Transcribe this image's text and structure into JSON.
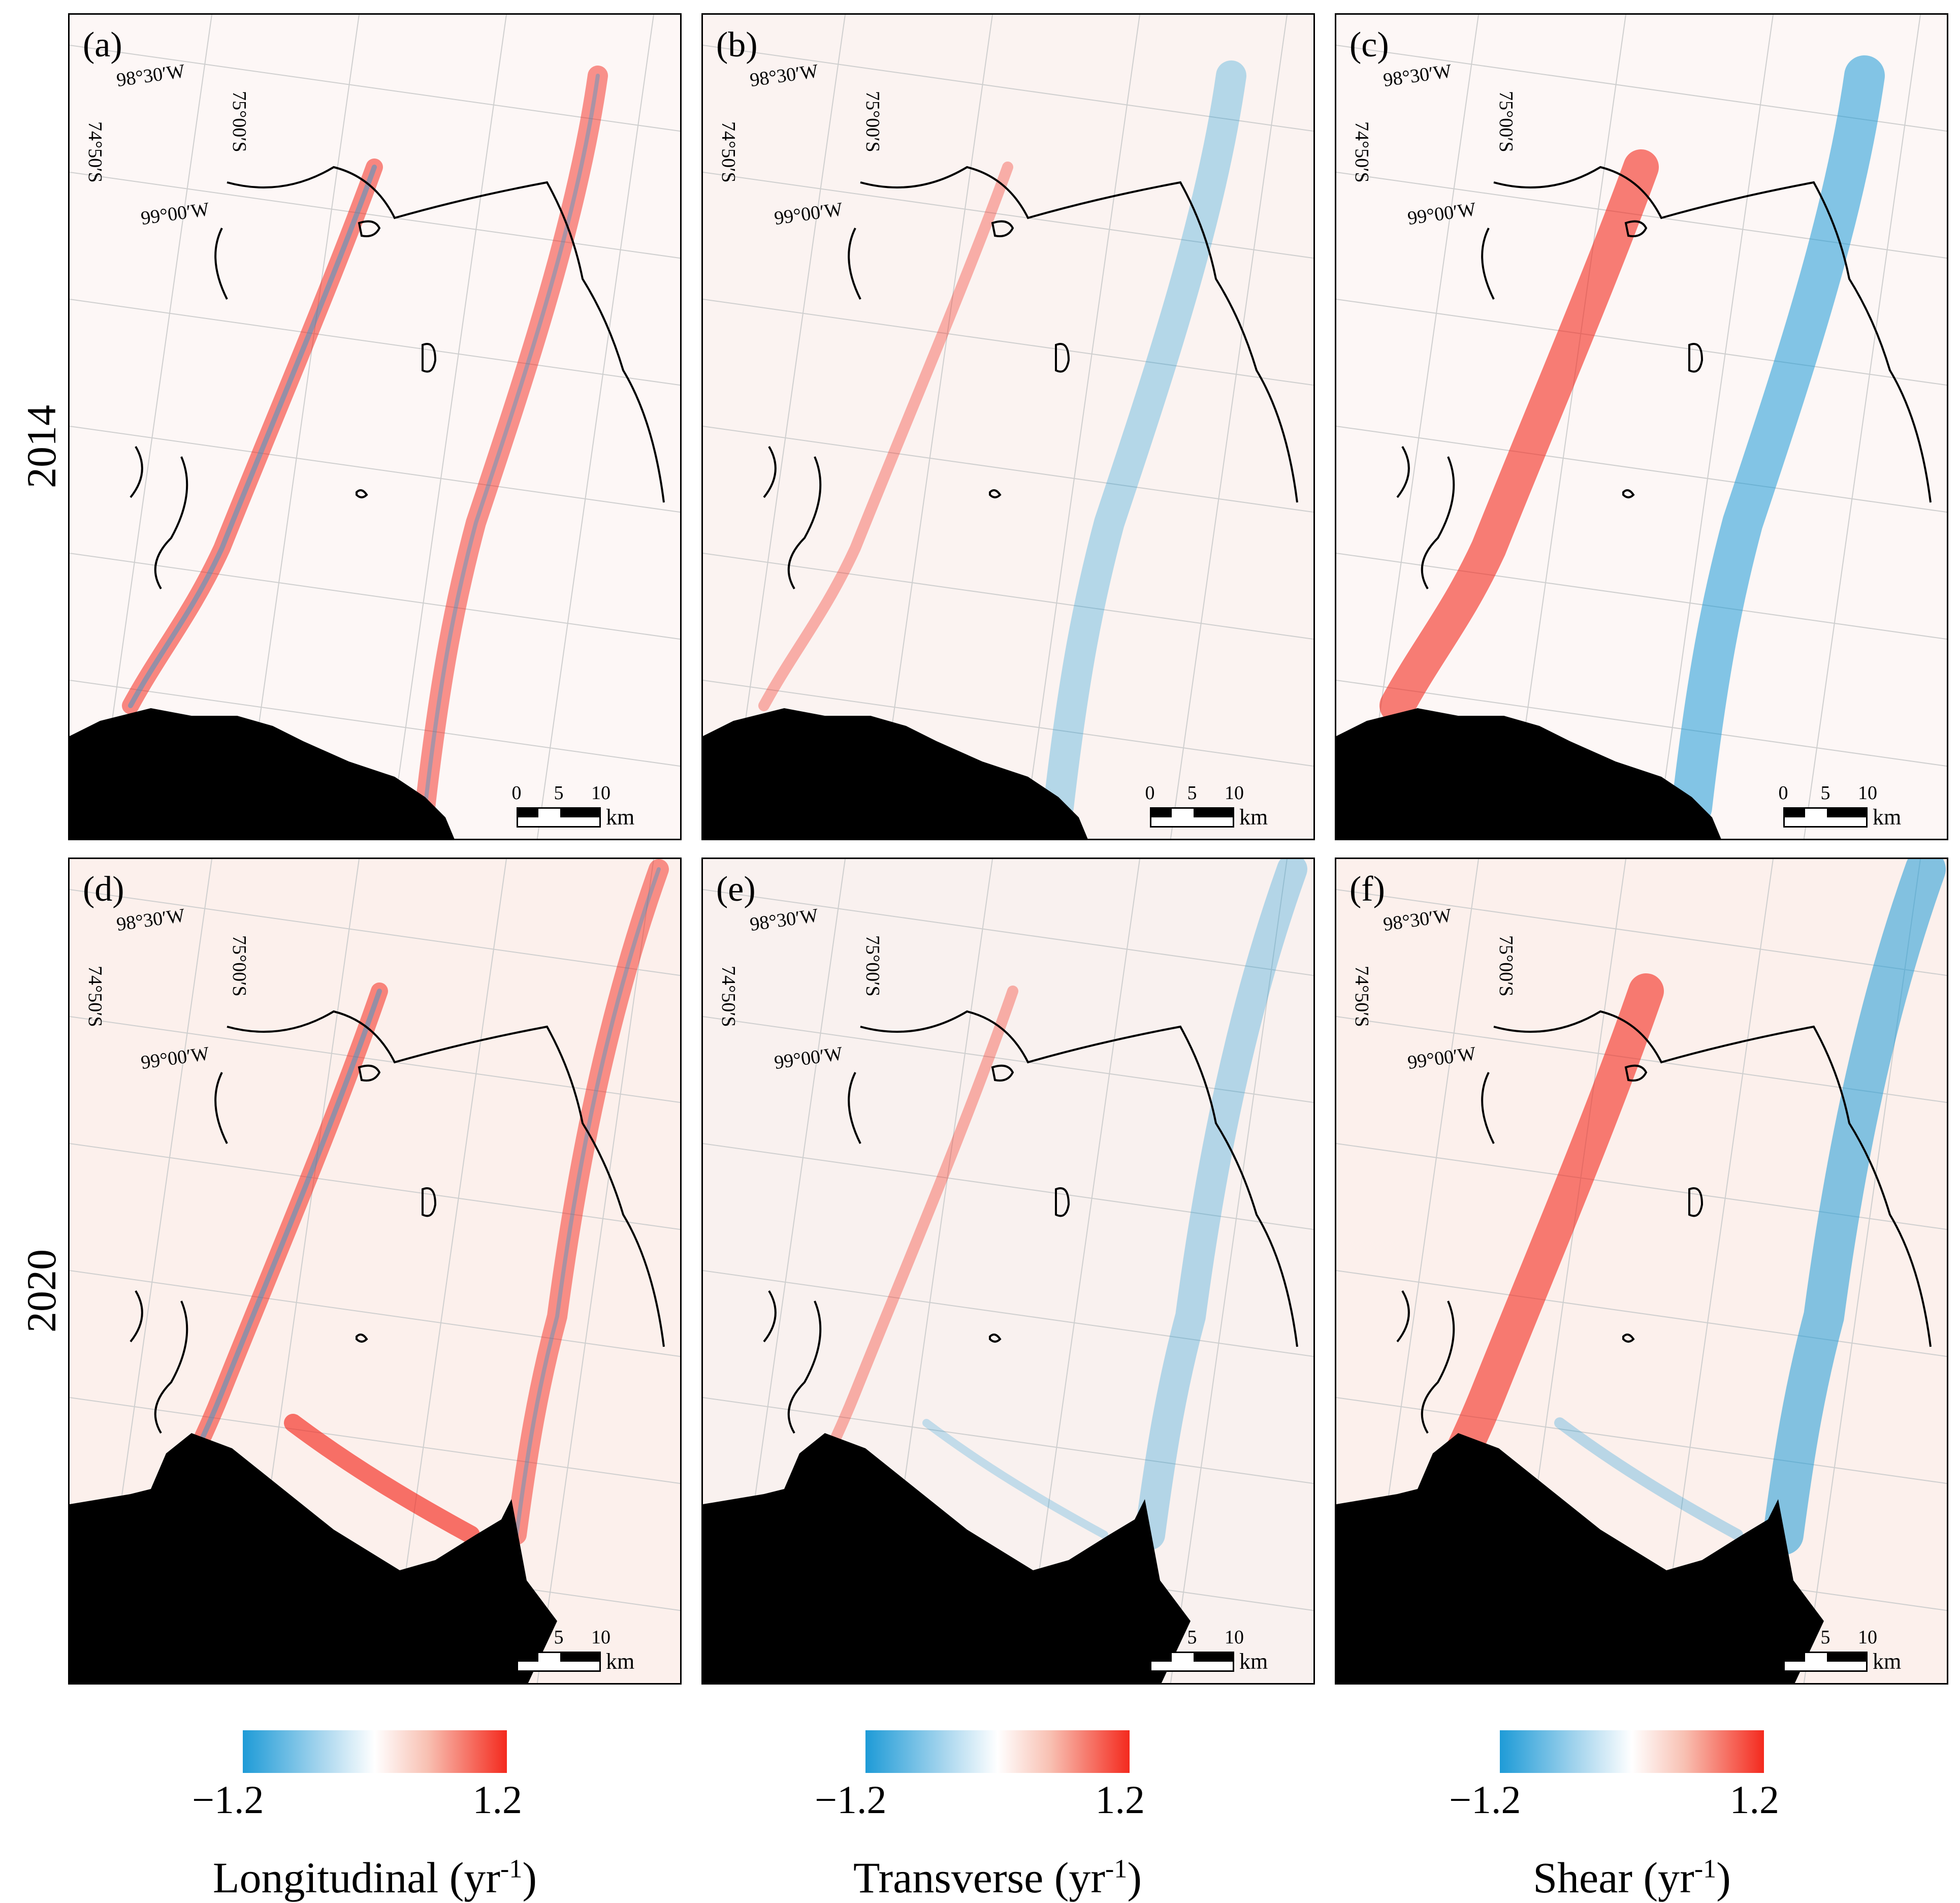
{
  "rows": [
    {
      "label": "2014"
    },
    {
      "label": "2020"
    }
  ],
  "panels": [
    {
      "label": "(a)",
      "variable": "Longitudinal",
      "year": "2014"
    },
    {
      "label": "(b)",
      "variable": "Transverse",
      "year": "2014"
    },
    {
      "label": "(c)",
      "variable": "Shear",
      "year": "2014"
    },
    {
      "label": "(d)",
      "variable": "Longitudinal",
      "year": "2020"
    },
    {
      "label": "(e)",
      "variable": "Transverse",
      "year": "2020"
    },
    {
      "label": "(f)",
      "variable": "Shear",
      "year": "2020"
    }
  ],
  "graticule": {
    "lon1": "98°30′W",
    "lon2": "99°00′W",
    "lat1": "74°50′S",
    "lat2": "75°00′S"
  },
  "scalebar": {
    "t0": "0",
    "t5": "5",
    "t10": "10",
    "unit": "km"
  },
  "colorbars": [
    {
      "title": "Longitudinal (yr",
      "exp": "-1",
      "close": ")",
      "min": "−1.2",
      "max": "1.2"
    },
    {
      "title": "Transverse (yr",
      "exp": "-1",
      "close": ")",
      "min": "−1.2",
      "max": "1.2"
    },
    {
      "title": "Shear (yr",
      "exp": "-1",
      "close": ")",
      "min": "−1.2",
      "max": "1.2"
    }
  ],
  "colors": {
    "negative": "#1e9bd7",
    "positive": "#f42a1e",
    "land": "#000000"
  }
}
